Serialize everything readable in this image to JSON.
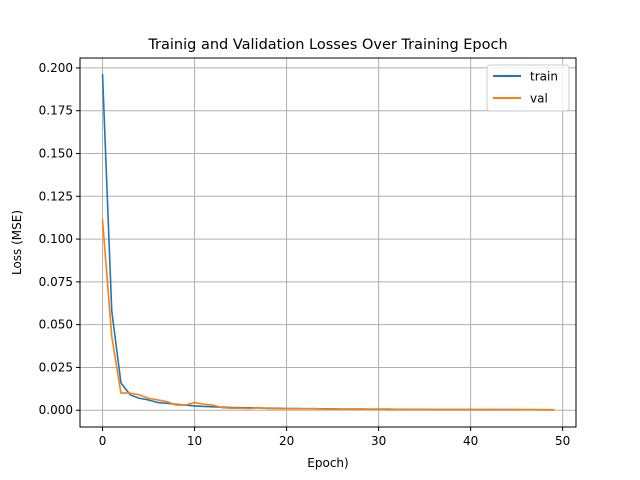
{
  "chart_data": {
    "type": "line",
    "title": "Trainig and Validation Losses Over Training Epoch",
    "xlabel": "Epoch)",
    "ylabel": "Loss (MSE)",
    "xlim": [
      -2.45,
      51.45
    ],
    "ylim": [
      -0.0098,
      0.2058
    ],
    "xticks": [
      0,
      10,
      20,
      30,
      40,
      50
    ],
    "xtick_labels": [
      "0",
      "10",
      "20",
      "30",
      "40",
      "50"
    ],
    "yticks": [
      0.0,
      0.025,
      0.05,
      0.075,
      0.1,
      0.125,
      0.15,
      0.175,
      0.2
    ],
    "ytick_labels": [
      "0.000",
      "0.025",
      "0.050",
      "0.075",
      "0.100",
      "0.125",
      "0.150",
      "0.175",
      "0.200"
    ],
    "grid": true,
    "legend": {
      "placement": "upper-right",
      "entries": [
        "train",
        "val"
      ]
    },
    "x": [
      0,
      1,
      2,
      3,
      4,
      5,
      6,
      7,
      8,
      9,
      10,
      11,
      12,
      13,
      14,
      15,
      16,
      17,
      18,
      19,
      20,
      21,
      22,
      23,
      24,
      25,
      26,
      27,
      28,
      29,
      30,
      31,
      32,
      33,
      34,
      35,
      36,
      37,
      38,
      39,
      40,
      41,
      42,
      43,
      44,
      45,
      46,
      47,
      48,
      49
    ],
    "series": [
      {
        "name": "train",
        "color": "#1f77b4",
        "values": [
          0.196,
          0.058,
          0.016,
          0.009,
          0.007,
          0.006,
          0.0045,
          0.004,
          0.0035,
          0.003,
          0.0025,
          0.0022,
          0.002,
          0.0018,
          0.0016,
          0.0015,
          0.0014,
          0.0013,
          0.0012,
          0.0011,
          0.001,
          0.001,
          0.0009,
          0.0009,
          0.0008,
          0.0008,
          0.0007,
          0.0007,
          0.0007,
          0.0006,
          0.0006,
          0.0006,
          0.0005,
          0.0005,
          0.0005,
          0.0005,
          0.0004,
          0.0004,
          0.0004,
          0.0004,
          0.0004,
          0.0003,
          0.0003,
          0.0003,
          0.0003,
          0.0003,
          0.0003,
          0.0003,
          0.0002,
          0.0002
        ]
      },
      {
        "name": "val",
        "color": "#ff7f0e",
        "values": [
          0.111,
          0.043,
          0.01,
          0.01,
          0.009,
          0.007,
          0.006,
          0.005,
          0.003,
          0.003,
          0.0045,
          0.0035,
          0.003,
          0.0015,
          0.0012,
          0.0012,
          0.001,
          0.0015,
          0.001,
          0.001,
          0.0008,
          0.0009,
          0.0008,
          0.0009,
          0.0007,
          0.0007,
          0.0006,
          0.0006,
          0.0007,
          0.0006,
          0.0005,
          0.0004,
          0.0004,
          0.0004,
          0.0005,
          0.0004,
          0.0004,
          0.0004,
          0.0004,
          0.0004,
          0.0004,
          0.0004,
          0.0005,
          0.0004,
          0.0004,
          0.0004,
          0.0003,
          0.0003,
          0.0003,
          0.0003
        ]
      }
    ]
  }
}
